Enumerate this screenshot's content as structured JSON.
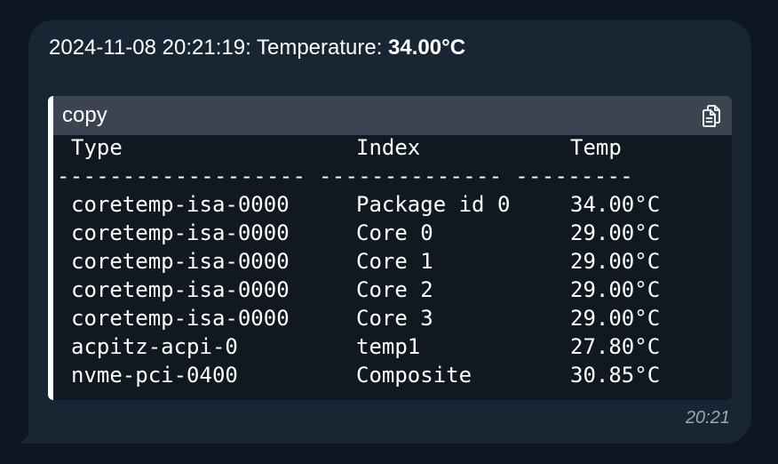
{
  "message": {
    "prefix": "2024-11-08 20:21:19: Temperature: ",
    "value": "34.00°C",
    "time": "20:21"
  },
  "code": {
    "language": "copy",
    "copy_icon": "copy-icon",
    "headers": [
      "Type",
      "Index",
      "Temp"
    ],
    "separator": "------------------- -------------- ---------",
    "rows": [
      [
        "coretemp-isa-0000",
        "Package id 0",
        "34.00°C"
      ],
      [
        "coretemp-isa-0000",
        "Core 0",
        "29.00°C"
      ],
      [
        "coretemp-isa-0000",
        "Core 1",
        "29.00°C"
      ],
      [
        "coretemp-isa-0000",
        "Core 2",
        "29.00°C"
      ],
      [
        "coretemp-isa-0000",
        "Core 3",
        "29.00°C"
      ],
      [
        "acpitz-acpi-0",
        "temp1",
        "27.80°C"
      ],
      [
        "nvme-pci-0400",
        "Composite",
        "30.85°C"
      ]
    ]
  },
  "colors": {
    "background": "#0e1621",
    "bubble": "#182533",
    "code_header": "#3b4450",
    "code_body": "#101921",
    "timestamp": "#9aa7b4"
  }
}
